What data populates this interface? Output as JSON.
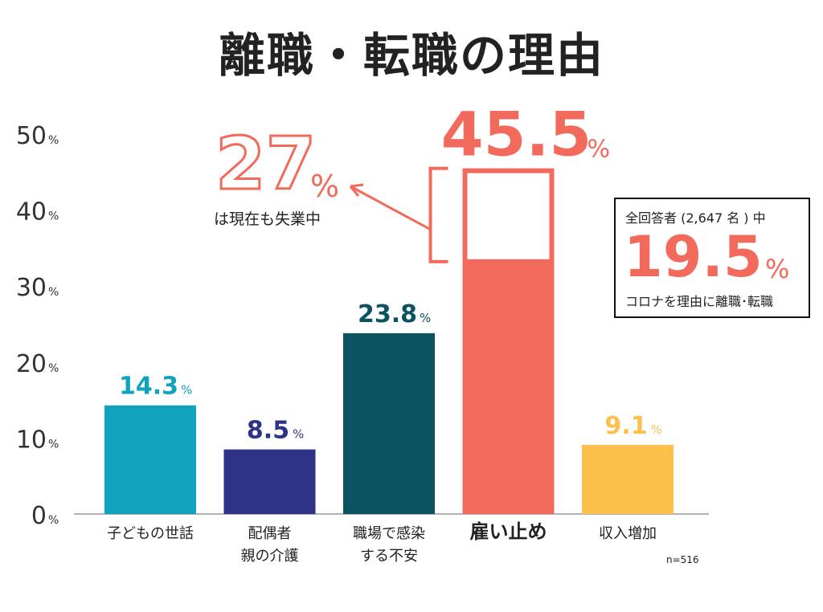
{
  "title": "離職・転職の理由",
  "callout_unemployed": {
    "value": "27",
    "unit": "%",
    "caption": "は現在も失業中",
    "color": "#f26a5b"
  },
  "summary_box": {
    "top_text": "全回答者 (2,647 名 ) 中",
    "value": "19.5",
    "unit": "%",
    "bottom_text": "コロナを理由に離職･転職",
    "value_color": "#f26a5b"
  },
  "sample_size": "n=516",
  "chart_data": {
    "type": "bar",
    "ylim": [
      0,
      50
    ],
    "yticks": [
      {
        "value": 0,
        "label": "0"
      },
      {
        "value": 10,
        "label": "10"
      },
      {
        "value": 20,
        "label": "20"
      },
      {
        "value": 30,
        "label": "30"
      },
      {
        "value": 40,
        "label": "40"
      },
      {
        "value": 50,
        "label": "50"
      }
    ],
    "tick_unit": "%",
    "bars": [
      {
        "category": "子どもの世話",
        "label_lines": [
          "子どもの世話"
        ],
        "value": 14.3,
        "display": "14.3",
        "unit": "%",
        "color": "#11a3bd",
        "emphasis": false
      },
      {
        "category": "配偶者 親の介護",
        "label_lines": [
          "配偶者",
          "親の介護"
        ],
        "value": 8.5,
        "display": "8.5",
        "unit": "%",
        "color": "#2f3388",
        "emphasis": false
      },
      {
        "category": "職場で感染 する不安",
        "label_lines": [
          "職場で感染",
          "する不安"
        ],
        "value": 23.8,
        "display": "23.8",
        "unit": "%",
        "color": "#0b5360",
        "emphasis": false
      },
      {
        "category": "雇い止め",
        "label_lines": [
          "雇い止め"
        ],
        "value": 45.5,
        "display": "45.5",
        "unit": "%",
        "color": "#f26a5b",
        "emphasis": true,
        "subset_share_of_bar": 0.27
      },
      {
        "category": "収入増加",
        "label_lines": [
          "収入増加"
        ],
        "value": 9.1,
        "display": "9.1",
        "unit": "%",
        "color": "#fcc04b",
        "emphasis": false
      }
    ]
  }
}
